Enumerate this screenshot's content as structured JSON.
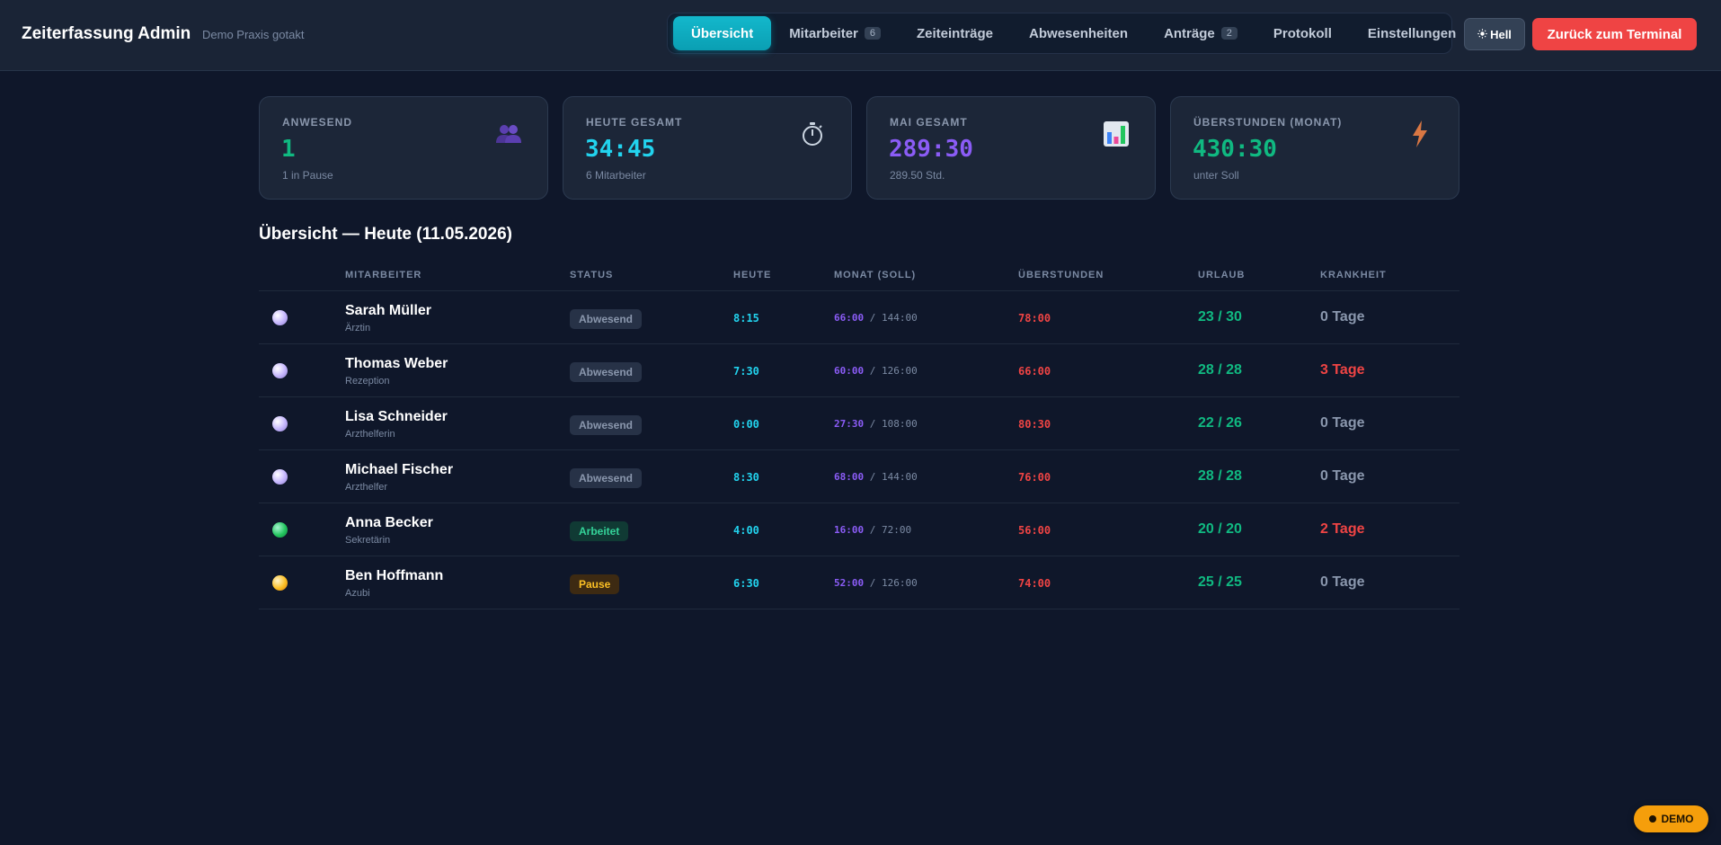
{
  "header": {
    "title": "Zeiterfassung Admin",
    "subtitle": "Demo Praxis gotakt",
    "nav": [
      {
        "label": "Übersicht",
        "badge": "",
        "active": true
      },
      {
        "label": "Mitarbeiter",
        "badge": "6",
        "active": false
      },
      {
        "label": "Zeiteinträge",
        "badge": "",
        "active": false
      },
      {
        "label": "Abwesenheiten",
        "badge": "",
        "active": false
      },
      {
        "label": "Anträge",
        "badge": "2",
        "active": false
      },
      {
        "label": "Protokoll",
        "badge": "",
        "active": false
      },
      {
        "label": "Einstellungen",
        "badge": "",
        "active": false
      }
    ],
    "theme_label": "Hell",
    "theme_icon": "sun-icon",
    "terminal_label": "Zurück zum Terminal"
  },
  "cards": [
    {
      "label": "ANWESEND",
      "value": "1",
      "sub": "1 in Pause",
      "icon": "people-icon",
      "color": "#10b981"
    },
    {
      "label": "HEUTE GESAMT",
      "value": "34:45",
      "sub": "6 Mitarbeiter",
      "icon": "stopwatch-icon",
      "color": "#22d3ee"
    },
    {
      "label": "MAI GESAMT",
      "value": "289:30",
      "sub": "289.50 Std.",
      "icon": "bar-chart-icon",
      "color": "#8b5cf6"
    },
    {
      "label": "ÜBERSTUNDEN (MONAT)",
      "value": "430:30",
      "sub": "unter Soll",
      "icon": "lightning-icon",
      "color": "#10b981"
    }
  ],
  "section_title": "Übersicht — Heute (11.05.2026)",
  "table": {
    "headers": {
      "employee": "MITARBEITER",
      "status": "STATUS",
      "today": "HEUTE",
      "month": "MONAT (SOLL)",
      "overtime": "ÜBERSTUNDEN",
      "vacation": "URLAUB",
      "sick": "KRANKHEIT"
    },
    "rows": [
      {
        "name": "Sarah Müller",
        "role": "Ärztin",
        "status": "Abwesend",
        "state": "off",
        "today": "8:15",
        "month": "66:00",
        "target": "/ 144:00",
        "overtime": "78:00",
        "vacation": "23 / 30",
        "sick": "0 Tage",
        "sick_days": 0
      },
      {
        "name": "Thomas Weber",
        "role": "Rezeption",
        "status": "Abwesend",
        "state": "off",
        "today": "7:30",
        "month": "60:00",
        "target": "/ 126:00",
        "overtime": "66:00",
        "vacation": "28 / 28",
        "sick": "3 Tage",
        "sick_days": 3
      },
      {
        "name": "Lisa Schneider",
        "role": "Arzthelferin",
        "status": "Abwesend",
        "state": "off",
        "today": "0:00",
        "month": "27:30",
        "target": "/ 108:00",
        "overtime": "80:30",
        "vacation": "22 / 26",
        "sick": "0 Tage",
        "sick_days": 0
      },
      {
        "name": "Michael Fischer",
        "role": "Arzthelfer",
        "status": "Abwesend",
        "state": "off",
        "today": "8:30",
        "month": "68:00",
        "target": "/ 144:00",
        "overtime": "76:00",
        "vacation": "28 / 28",
        "sick": "0 Tage",
        "sick_days": 0
      },
      {
        "name": "Anna Becker",
        "role": "Sekretärin",
        "status": "Arbeitet",
        "state": "work",
        "today": "4:00",
        "month": "16:00",
        "target": "/ 72:00",
        "overtime": "56:00",
        "vacation": "20 / 20",
        "sick": "2 Tage",
        "sick_days": 2
      },
      {
        "name": "Ben Hoffmann",
        "role": "Azubi",
        "status": "Pause",
        "state": "pause",
        "today": "6:30",
        "month": "52:00",
        "target": "/ 126:00",
        "overtime": "74:00",
        "vacation": "25 / 25",
        "sick": "0 Tage",
        "sick_days": 0
      }
    ]
  },
  "demo_badge": "DEMO"
}
